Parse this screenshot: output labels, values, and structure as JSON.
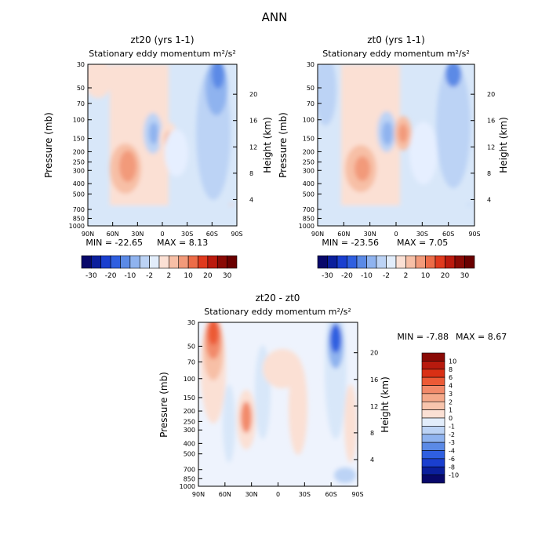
{
  "figure_title": "ANN",
  "chart_data": [
    {
      "type": "heatmap",
      "title": "zt20 (yrs 1-1)",
      "subtitle": "Stationary eddy momentum m²/s²",
      "xlabel": "",
      "ylabel": "Pressure (mb)",
      "y2label": "Height (km)",
      "x_ticks": [
        "90N",
        "60N",
        "30N",
        "0",
        "30S",
        "60S",
        "90S"
      ],
      "p_ticks": [
        "30",
        "50",
        "70",
        "100",
        "150",
        "200",
        "250",
        "300",
        "400",
        "500",
        "700",
        "850",
        "1000"
      ],
      "z_ticks": [
        "4",
        "8",
        "12",
        "16",
        "20"
      ],
      "min_label": "MIN = -22.65",
      "max_label": "MAX =  8.13",
      "colorbar_labels": [
        "-30",
        "-20",
        "-10",
        "-2",
        "2",
        "10",
        "20",
        "30"
      ],
      "features": [
        {
          "lat": 32,
          "p": 300,
          "value": 6
        },
        {
          "lat": 20,
          "p": 150,
          "value": -6
        },
        {
          "lat": 0,
          "p": 150,
          "value": 4
        },
        {
          "lat": -50,
          "p": 40,
          "value": -22.65
        },
        {
          "lat": -45,
          "p": 200,
          "value": -4
        },
        {
          "lat": 75,
          "p": 35,
          "value": 2
        }
      ]
    },
    {
      "type": "heatmap",
      "title": "zt0 (yrs 1-1)",
      "subtitle": "Stationary eddy momentum m²/s²",
      "xlabel": "",
      "ylabel": "Pressure (mb)",
      "y2label": "Height (km)",
      "x_ticks": [
        "90N",
        "60N",
        "30N",
        "0",
        "30S",
        "60S",
        "90S"
      ],
      "p_ticks": [
        "30",
        "50",
        "70",
        "100",
        "150",
        "200",
        "250",
        "300",
        "400",
        "500",
        "700",
        "850",
        "1000"
      ],
      "z_ticks": [
        "4",
        "8",
        "12",
        "16",
        "20"
      ],
      "min_label": "MIN = -23.56",
      "max_label": "MAX =  7.05",
      "colorbar_labels": [
        "-30",
        "-20",
        "-10",
        "-2",
        "2",
        "10",
        "20",
        "30"
      ],
      "features": [
        {
          "lat": 32,
          "p": 300,
          "value": 4
        },
        {
          "lat": 20,
          "p": 150,
          "value": -6
        },
        {
          "lat": 0,
          "p": 150,
          "value": 6
        },
        {
          "lat": -65,
          "p": 35,
          "value": -23.56
        },
        {
          "lat": 70,
          "p": 60,
          "value": -4
        },
        {
          "lat": -50,
          "p": 200,
          "value": -3
        }
      ]
    },
    {
      "type": "heatmap",
      "title": "zt20 - zt0",
      "subtitle": "Stationary eddy momentum m²/s²",
      "xlabel": "",
      "ylabel": "Pressure (mb)",
      "y2label": "Height (km)",
      "x_ticks": [
        "90N",
        "60N",
        "30N",
        "0",
        "30S",
        "60S",
        "90S"
      ],
      "p_ticks": [
        "30",
        "50",
        "70",
        "100",
        "150",
        "200",
        "250",
        "300",
        "400",
        "500",
        "700",
        "850",
        "1000"
      ],
      "z_ticks": [
        "4",
        "8",
        "12",
        "16",
        "20"
      ],
      "min_label": "MIN =  -7.88",
      "max_label": "MAX =  8.67",
      "colorbar_labels": [
        "10",
        "8",
        "6",
        "4",
        "3",
        "2",
        "1",
        "0",
        "-1",
        "-2",
        "-3",
        "-4",
        "-6",
        "-8",
        "-10"
      ],
      "features": [
        {
          "lat": 72,
          "p": 40,
          "value": 8.67
        },
        {
          "lat": -62,
          "p": 50,
          "value": -7.88
        },
        {
          "lat": 35,
          "p": 220,
          "value": 3
        },
        {
          "lat": 10,
          "p": 250,
          "value": -1
        },
        {
          "lat": -20,
          "p": 200,
          "value": 1
        },
        {
          "lat": 80,
          "p": 300,
          "value": -1
        }
      ]
    }
  ]
}
